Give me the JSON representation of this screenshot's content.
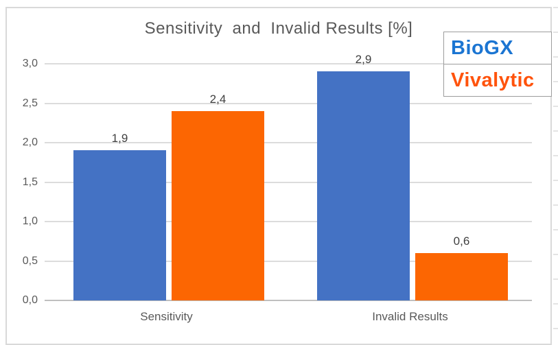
{
  "chart_data": {
    "type": "bar",
    "title": "Sensitivity  and  Invalid Results [%]",
    "categories": [
      "Sensitivity",
      "Invalid Results"
    ],
    "series": [
      {
        "name": "BioGX",
        "color": "#4472c4",
        "values": [
          1.9,
          2.9
        ],
        "labels": [
          "1,9",
          "2,9"
        ]
      },
      {
        "name": "Vivalytic",
        "color": "#fc6602",
        "values": [
          2.4,
          0.6
        ],
        "labels": [
          "2,4",
          "0,6"
        ]
      }
    ],
    "xlabel": "",
    "ylabel": "",
    "ylim": [
      0,
      3
    ],
    "ytick_step": 0.5,
    "yticks": [
      "3,0",
      "2,5",
      "2,0",
      "1,5",
      "1,0",
      "0,5",
      "0,0"
    ],
    "decimal_separator": ",",
    "grid": true,
    "legend_position": "top-right"
  },
  "legend": {
    "items": [
      {
        "label": "BioGX",
        "color": "#1b75d2"
      },
      {
        "label": "Vivalytic",
        "color": "#ff530c"
      }
    ]
  },
  "colors": {
    "title_text": "#595959",
    "axis_line": "#bfbfbf",
    "gridline": "#dcdcdc",
    "chart_border": "#d9d9d9"
  }
}
